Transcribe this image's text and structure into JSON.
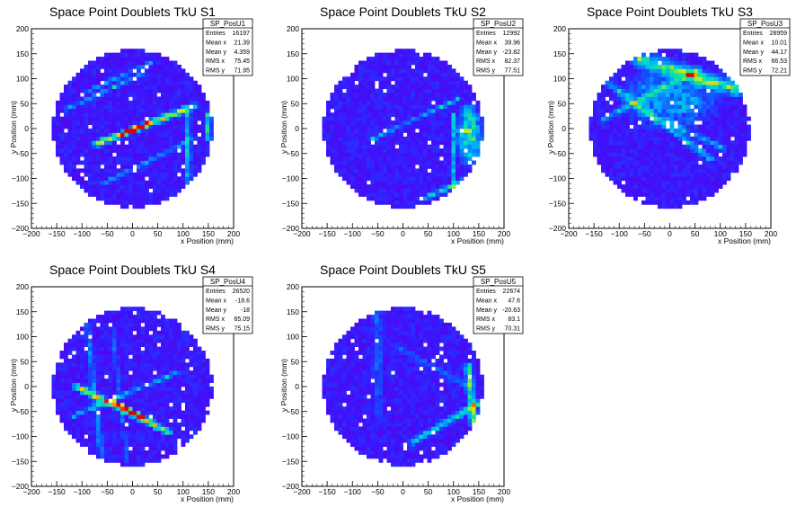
{
  "chart_data": [
    {
      "type": "heatmap",
      "title": "Space Point Doublets TkU S1",
      "xlabel": "x Position (mm)",
      "ylabel": "y Position (mm)",
      "xlim": [
        -200,
        200
      ],
      "ylim": [
        -200,
        200
      ],
      "xticks": [
        -200,
        -150,
        -100,
        -50,
        0,
        50,
        100,
        150,
        200
      ],
      "yticks": [
        -200,
        -150,
        -100,
        -50,
        0,
        50,
        100,
        150,
        200
      ],
      "stats": {
        "name": "SP_PosU1",
        "rows": [
          [
            "Entries",
            "16197"
          ],
          [
            "Mean x",
            "21.39"
          ],
          [
            "Mean y",
            "4.359"
          ],
          [
            "RMS x",
            "75.45"
          ],
          [
            "RMS y",
            "71.95"
          ]
        ]
      },
      "features": [
        {
          "kind": "line",
          "x1": -70,
          "y1": -30,
          "x2": 120,
          "y2": 45,
          "intensity": 0.75,
          "width": 10
        },
        {
          "kind": "line",
          "x1": -20,
          "y1": -10,
          "x2": 30,
          "y2": 10,
          "intensity": 1.0,
          "width": 6
        },
        {
          "kind": "line",
          "x1": -130,
          "y1": 40,
          "x2": 20,
          "y2": 110,
          "intensity": 0.35,
          "width": 6
        },
        {
          "kind": "line",
          "x1": -100,
          "y1": 70,
          "x2": 40,
          "y2": 135,
          "intensity": 0.3,
          "width": 6
        },
        {
          "kind": "line",
          "x1": -60,
          "y1": -110,
          "x2": 120,
          "y2": -20,
          "intensity": 0.35,
          "width": 6
        },
        {
          "kind": "line",
          "x1": 110,
          "y1": 30,
          "x2": 110,
          "y2": -110,
          "intensity": 0.45,
          "width": 8
        },
        {
          "kind": "line",
          "x1": 150,
          "y1": 30,
          "x2": 150,
          "y2": -20,
          "intensity": 0.55,
          "width": 8
        }
      ]
    },
    {
      "type": "heatmap",
      "title": "Space Point Doublets TkU S2",
      "xlabel": "x Position (mm)",
      "ylabel": "y Position (mm)",
      "xlim": [
        -200,
        200
      ],
      "ylim": [
        -200,
        200
      ],
      "xticks": [
        -200,
        -150,
        -100,
        -50,
        0,
        50,
        100,
        150,
        200
      ],
      "yticks": [
        -200,
        -150,
        -100,
        -50,
        0,
        50,
        100,
        150,
        200
      ],
      "stats": {
        "name": "SP_PosU2",
        "rows": [
          [
            "Entries",
            "12992"
          ],
          [
            "Mean x",
            "39.96"
          ],
          [
            "Mean y",
            "-23.82"
          ],
          [
            "RMS x",
            "82.37"
          ],
          [
            "RMS y",
            "77.51"
          ]
        ]
      },
      "features": [
        {
          "kind": "line",
          "x1": -60,
          "y1": -20,
          "x2": 110,
          "y2": 60,
          "intensity": 0.4,
          "width": 6
        },
        {
          "kind": "blob",
          "x": 130,
          "y": -10,
          "rx": 30,
          "ry": 70,
          "intensity": 0.5
        },
        {
          "kind": "line",
          "x1": 40,
          "y1": -140,
          "x2": 150,
          "y2": -90,
          "intensity": 0.45,
          "width": 8
        },
        {
          "kind": "line",
          "x1": 100,
          "y1": 30,
          "x2": 100,
          "y2": -120,
          "intensity": 0.35,
          "width": 6
        }
      ]
    },
    {
      "type": "heatmap",
      "title": "Space Point Doublets TkU S3",
      "xlabel": "x Position (mm)",
      "ylabel": "y Position (mm)",
      "xlim": [
        -200,
        200
      ],
      "ylim": [
        -200,
        200
      ],
      "xticks": [
        -200,
        -150,
        -100,
        -50,
        0,
        50,
        100,
        150,
        200
      ],
      "yticks": [
        -200,
        -150,
        -100,
        -50,
        0,
        50,
        100,
        150,
        200
      ],
      "stats": {
        "name": "SP_PosU3",
        "rows": [
          [
            "Entries",
            "28959"
          ],
          [
            "Mean x",
            "10.01"
          ],
          [
            "Mean y",
            "44.17"
          ],
          [
            "RMS x",
            "66.53"
          ],
          [
            "RMS y",
            "72.21"
          ]
        ]
      },
      "features": [
        {
          "kind": "line",
          "x1": -60,
          "y1": 140,
          "x2": 130,
          "y2": 80,
          "intensity": 0.6,
          "width": 22
        },
        {
          "kind": "line",
          "x1": -120,
          "y1": 90,
          "x2": 80,
          "y2": -60,
          "intensity": 0.4,
          "width": 10
        },
        {
          "kind": "line",
          "x1": -130,
          "y1": 20,
          "x2": 60,
          "y2": 120,
          "intensity": 0.3,
          "width": 10
        },
        {
          "kind": "line",
          "x1": 0,
          "y1": 10,
          "x2": 110,
          "y2": -40,
          "intensity": 0.35,
          "width": 8
        },
        {
          "kind": "blob",
          "x": 0,
          "y": 60,
          "rx": 110,
          "ry": 70,
          "intensity": 0.28
        }
      ]
    },
    {
      "type": "heatmap",
      "title": "Space Point Doublets TkU S4",
      "xlabel": "x Position (mm)",
      "ylabel": "y Position (mm)",
      "xlim": [
        -200,
        200
      ],
      "ylim": [
        -200,
        200
      ],
      "xticks": [
        -200,
        -150,
        -100,
        -50,
        0,
        50,
        100,
        150,
        200
      ],
      "yticks": [
        -200,
        -150,
        -100,
        -50,
        0,
        50,
        100,
        150,
        200
      ],
      "stats": {
        "name": "SP_PosU4",
        "rows": [
          [
            "Entries",
            "26520"
          ],
          [
            "Mean x",
            "-18.6"
          ],
          [
            "Mean y",
            "-18"
          ],
          [
            "RMS x",
            "65.09"
          ],
          [
            "RMS y",
            "75.15"
          ]
        ]
      },
      "features": [
        {
          "kind": "line",
          "x1": -110,
          "y1": 0,
          "x2": 70,
          "y2": -90,
          "intensity": 0.75,
          "width": 10
        },
        {
          "kind": "line",
          "x1": -40,
          "y1": -30,
          "x2": 20,
          "y2": -60,
          "intensity": 1.0,
          "width": 6
        },
        {
          "kind": "line",
          "x1": -120,
          "y1": -60,
          "x2": 90,
          "y2": 30,
          "intensity": 0.4,
          "width": 6
        },
        {
          "kind": "line",
          "x1": -90,
          "y1": 130,
          "x2": -60,
          "y2": -150,
          "intensity": 0.3,
          "width": 8
        },
        {
          "kind": "line",
          "x1": -40,
          "y1": 120,
          "x2": -10,
          "y2": -150,
          "intensity": 0.2,
          "width": 6
        }
      ]
    },
    {
      "type": "heatmap",
      "title": "Space Point Doublets TkU S5",
      "xlabel": "x Position (mm)",
      "ylabel": "y Position (mm)",
      "xlim": [
        -200,
        200
      ],
      "ylim": [
        -200,
        200
      ],
      "xticks": [
        -200,
        -150,
        -100,
        -50,
        0,
        50,
        100,
        150,
        200
      ],
      "yticks": [
        -200,
        -150,
        -100,
        -50,
        0,
        50,
        100,
        150,
        200
      ],
      "stats": {
        "name": "SP_PosU5",
        "rows": [
          [
            "Entries",
            "22674"
          ],
          [
            "Mean x",
            "47.6"
          ],
          [
            "Mean y",
            "-20.63"
          ],
          [
            "RMS x",
            "83.1"
          ],
          [
            "RMS y",
            "70.31"
          ]
        ]
      },
      "features": [
        {
          "kind": "line",
          "x1": 20,
          "y1": -110,
          "x2": 155,
          "y2": -30,
          "intensity": 0.5,
          "width": 10
        },
        {
          "kind": "line",
          "x1": 130,
          "y1": 40,
          "x2": 140,
          "y2": -70,
          "intensity": 0.6,
          "width": 12
        },
        {
          "kind": "line",
          "x1": -50,
          "y1": 150,
          "x2": -50,
          "y2": -50,
          "intensity": 0.18,
          "width": 14
        },
        {
          "kind": "line",
          "x1": -10,
          "y1": 80,
          "x2": 130,
          "y2": 0,
          "intensity": 0.15,
          "width": 10
        }
      ]
    }
  ]
}
